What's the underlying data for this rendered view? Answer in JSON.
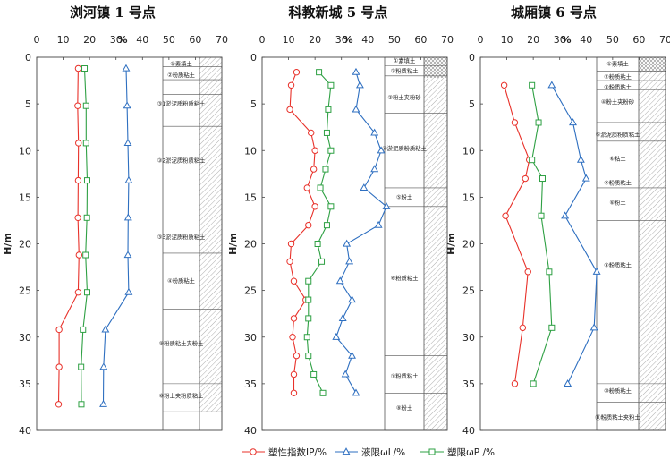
{
  "figure": {
    "y_axis_label": "H/m",
    "x_unit_label": "%",
    "x_ticks": [
      0,
      10,
      20,
      30,
      40,
      50,
      60,
      70
    ],
    "y_ticks": [
      0,
      5,
      10,
      15,
      20,
      25,
      30,
      35,
      40
    ]
  },
  "legend": {
    "items": [
      {
        "key": "IP",
        "label": "塑性指数IP/%",
        "color": "#e8312a",
        "marker": "circle"
      },
      {
        "key": "WL",
        "label": "液限ωL/%",
        "color": "#2e6fc0",
        "marker": "triangle"
      },
      {
        "key": "WP",
        "label": "塑限ωP /%",
        "color": "#2ea043",
        "marker": "square"
      }
    ]
  },
  "chart_data": [
    {
      "type": "line",
      "title": "浏河镇 1 号点",
      "xlabel": "%",
      "ylabel": "H/m",
      "xlim": [
        0,
        70
      ],
      "ylim": [
        0,
        40
      ],
      "y_inverted": true,
      "grid": false,
      "series": [
        {
          "name": "塑性指数IP/%",
          "points": [
            [
              15.7,
              1.2
            ],
            [
              15.5,
              5.2
            ],
            [
              15.8,
              9.2
            ],
            [
              15.7,
              13.2
            ],
            [
              15.6,
              17.2
            ],
            [
              16.0,
              21.2
            ],
            [
              15.7,
              25.2
            ],
            [
              8.5,
              29.2
            ],
            [
              8.5,
              33.2
            ],
            [
              8.3,
              37.2
            ]
          ]
        },
        {
          "name": "液限ωL/%",
          "points": [
            [
              33.8,
              1.2
            ],
            [
              34.2,
              5.2
            ],
            [
              34.5,
              9.2
            ],
            [
              34.8,
              13.2
            ],
            [
              34.6,
              17.2
            ],
            [
              34.5,
              21.2
            ],
            [
              34.8,
              25.2
            ],
            [
              26.0,
              29.2
            ],
            [
              25.3,
              33.2
            ],
            [
              25.2,
              37.2
            ]
          ]
        },
        {
          "name": "塑限ωP /%",
          "points": [
            [
              18.1,
              1.2
            ],
            [
              18.7,
              5.2
            ],
            [
              18.7,
              9.2
            ],
            [
              19.1,
              13.2
            ],
            [
              19.0,
              17.2
            ],
            [
              18.5,
              21.2
            ],
            [
              19.1,
              25.2
            ],
            [
              17.5,
              29.2
            ],
            [
              16.8,
              33.2
            ],
            [
              16.9,
              37.2
            ]
          ]
        }
      ],
      "strata_labels": [
        "①素填土",
        "②粉质粘土",
        "③1淤泥质粉质粘土",
        "③2淤泥质粉质粘土",
        "③3淤泥质粉质粘土",
        "④粉质粘土",
        "⑤粉质粘土夹粉土",
        "⑥粉土夹粉质粘土"
      ]
    },
    {
      "type": "line",
      "title": "科教新城 5 号点",
      "xlabel": "%",
      "ylabel": "H/m",
      "xlim": [
        0,
        70
      ],
      "ylim": [
        0,
        40
      ],
      "y_inverted": true,
      "grid": false,
      "series": [
        {
          "name": "塑性指数IP/%",
          "points": [
            [
              13.0,
              1.6
            ],
            [
              11.0,
              3.0
            ],
            [
              10.5,
              5.6
            ],
            [
              18.5,
              8.1
            ],
            [
              20.0,
              10.0
            ],
            [
              19.5,
              12.0
            ],
            [
              17.0,
              14.0
            ],
            [
              20.0,
              16.0
            ],
            [
              17.5,
              18.0
            ],
            [
              11.0,
              20.0
            ],
            [
              10.5,
              21.9
            ],
            [
              12.0,
              24.0
            ],
            [
              16.5,
              26.0
            ],
            [
              12.0,
              28.0
            ],
            [
              11.5,
              30.0
            ],
            [
              13.0,
              32.0
            ],
            [
              12.0,
              34.0
            ],
            [
              12.0,
              36.0
            ]
          ]
        },
        {
          "name": "液限ωL/%",
          "points": [
            [
              35.5,
              1.6
            ],
            [
              37.0,
              3.0
            ],
            [
              35.5,
              5.6
            ],
            [
              42.5,
              8.1
            ],
            [
              45.0,
              10.0
            ],
            [
              42.5,
              12.0
            ],
            [
              38.5,
              14.0
            ],
            [
              47.0,
              16.0
            ],
            [
              44.0,
              18.0
            ],
            [
              32.0,
              20.0
            ],
            [
              33.0,
              21.9
            ],
            [
              29.5,
              24.0
            ],
            [
              34.0,
              26.0
            ],
            [
              30.5,
              28.0
            ],
            [
              28.0,
              30.0
            ],
            [
              34.0,
              32.0
            ],
            [
              31.5,
              34.0
            ],
            [
              35.5,
              36.0
            ]
          ]
        },
        {
          "name": "塑限ωP /%",
          "points": [
            [
              21.5,
              1.6
            ],
            [
              26.0,
              3.0
            ],
            [
              25.0,
              5.6
            ],
            [
              24.5,
              8.1
            ],
            [
              26.0,
              10.0
            ],
            [
              24.0,
              12.0
            ],
            [
              22.0,
              14.0
            ],
            [
              26.0,
              16.0
            ],
            [
              24.5,
              18.0
            ],
            [
              21.0,
              20.0
            ],
            [
              22.5,
              21.9
            ],
            [
              17.5,
              24.0
            ],
            [
              17.5,
              26.0
            ],
            [
              17.5,
              28.0
            ],
            [
              17.0,
              30.0
            ],
            [
              17.5,
              32.0
            ],
            [
              19.5,
              34.0
            ],
            [
              23.0,
              36.0
            ]
          ]
        }
      ],
      "strata_labels": [
        "①素填土",
        "②粉质粘土",
        "③粉土夹粉砂",
        "④淤泥质粉质粘土",
        "⑤粉土",
        "⑥粉质粘土",
        "⑦粉质粘土",
        "⑧粉土"
      ]
    },
    {
      "type": "line",
      "title": "城厢镇 6 号点",
      "xlabel": "%",
      "ylabel": "H/m",
      "xlim": [
        0,
        70
      ],
      "ylim": [
        0,
        40
      ],
      "y_inverted": true,
      "grid": false,
      "series": [
        {
          "name": "塑性指数IP/%",
          "points": [
            [
              9.0,
              3.0
            ],
            [
              13.0,
              7.0
            ],
            [
              18.5,
              11.0
            ],
            [
              17.0,
              13.0
            ],
            [
              9.5,
              17.0
            ],
            [
              18.0,
              23.0
            ],
            [
              16.0,
              29.0
            ],
            [
              13.0,
              35.0
            ]
          ]
        },
        {
          "name": "液限ωL/%",
          "points": [
            [
              27.0,
              3.0
            ],
            [
              35.0,
              7.0
            ],
            [
              38.0,
              11.0
            ],
            [
              40.0,
              13.0
            ],
            [
              32.0,
              17.0
            ],
            [
              44.0,
              23.0
            ],
            [
              43.0,
              29.0
            ],
            [
              33.0,
              35.0
            ]
          ]
        },
        {
          "name": "塑限ωP /%",
          "points": [
            [
              19.5,
              3.0
            ],
            [
              22.0,
              7.0
            ],
            [
              19.5,
              11.0
            ],
            [
              23.5,
              13.0
            ],
            [
              23.0,
              17.0
            ],
            [
              26.0,
              23.0
            ],
            [
              27.0,
              29.0
            ],
            [
              20.0,
              35.0
            ]
          ]
        }
      ],
      "strata_labels": [
        "①素填土",
        "②粉质粘土",
        "③粉质粘土",
        "④粉土夹粉砂",
        "⑤淤泥质粉质粘土",
        "⑥粘土",
        "⑦粉质粘土",
        "⑧粉土",
        "⑨粉质粘土",
        "⑩粉质粘土",
        "⑪粉质粘土夹粉土"
      ]
    }
  ]
}
